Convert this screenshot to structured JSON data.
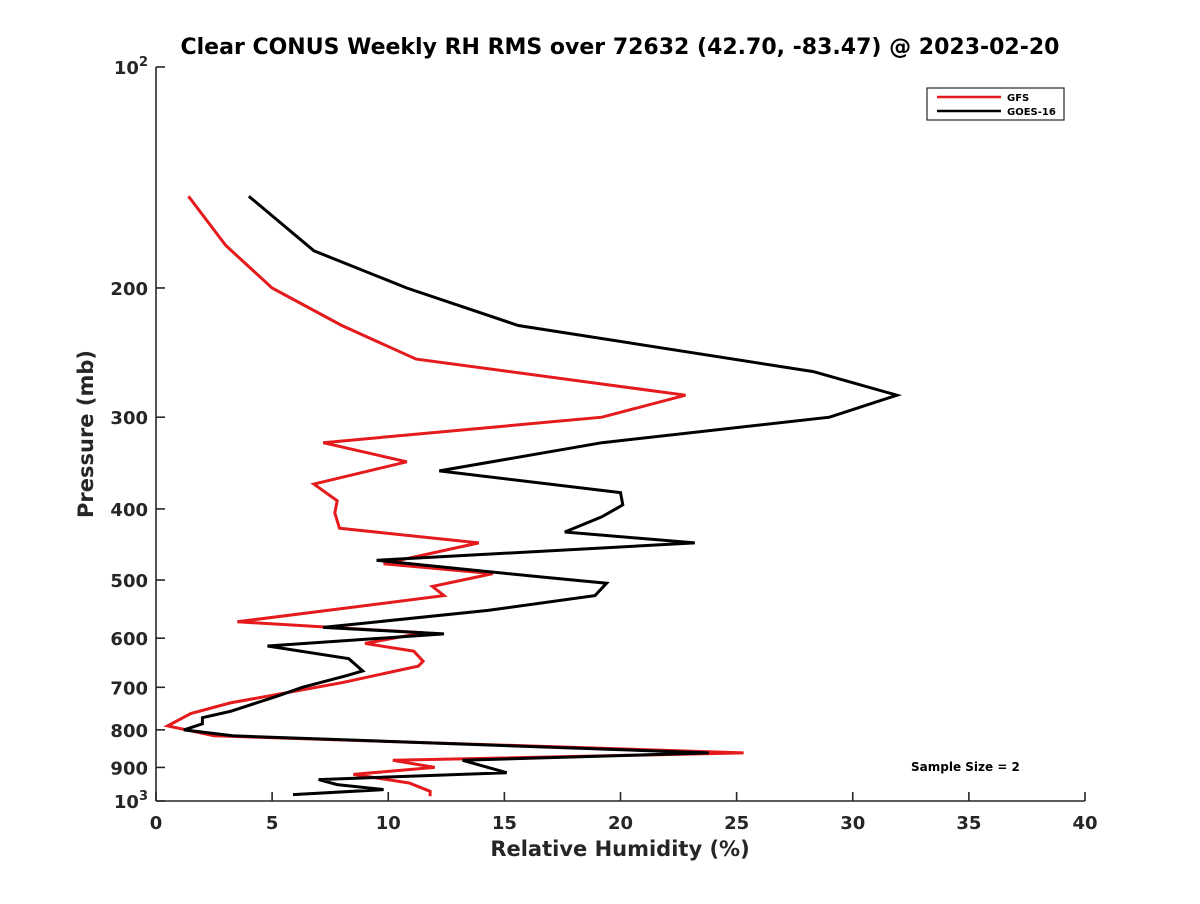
{
  "chart_data": {
    "type": "line",
    "title": "Clear CONUS Weekly RH RMS over 72632 (42.70, -83.47) @ 2023-02-20",
    "xlabel": "Relative Humidity (%)",
    "ylabel": "Pressure (mb)",
    "xlim": [
      0,
      40
    ],
    "ylim": [
      100,
      1000
    ],
    "y_scale": "log",
    "y_reversed": true,
    "grid": false,
    "legend_position": "top-right",
    "annotation": "Sample Size = 2",
    "x_ticks": [
      "0",
      "5",
      "10",
      "15",
      "20",
      "25",
      "30",
      "35",
      "40"
    ],
    "y_ticks": [
      {
        "value": 100,
        "base": "10",
        "exp": "2"
      },
      {
        "value": 200,
        "label": "200"
      },
      {
        "value": 300,
        "label": "300"
      },
      {
        "value": 400,
        "label": "400"
      },
      {
        "value": 500,
        "label": "500"
      },
      {
        "value": 600,
        "label": "600"
      },
      {
        "value": 700,
        "label": "700"
      },
      {
        "value": 800,
        "label": "800"
      },
      {
        "value": 900,
        "label": "900"
      },
      {
        "value": 1000,
        "base": "10",
        "exp": "3"
      }
    ],
    "series": [
      {
        "name": "GFS",
        "color": "#e41a1c",
        "points": [
          [
            1.4,
            150
          ],
          [
            3.0,
            175
          ],
          [
            5.0,
            200
          ],
          [
            8.0,
            225
          ],
          [
            11.2,
            250
          ],
          [
            22.8,
            280
          ],
          [
            19.2,
            300
          ],
          [
            7.2,
            325
          ],
          [
            10.8,
            345
          ],
          [
            6.8,
            370
          ],
          [
            7.8,
            390
          ],
          [
            7.7,
            405
          ],
          [
            7.9,
            425
          ],
          [
            13.9,
            445
          ],
          [
            9.8,
            475
          ],
          [
            14.5,
            490
          ],
          [
            11.9,
            510
          ],
          [
            12.4,
            525
          ],
          [
            3.5,
            570
          ],
          [
            11.5,
            590
          ],
          [
            9.0,
            610
          ],
          [
            11.1,
            625
          ],
          [
            11.5,
            645
          ],
          [
            11.3,
            655
          ],
          [
            8.0,
            690
          ],
          [
            3.2,
            735
          ],
          [
            1.5,
            760
          ],
          [
            0.5,
            790
          ],
          [
            2.5,
            815
          ],
          [
            25.3,
            860
          ],
          [
            10.2,
            880
          ],
          [
            12.0,
            900
          ],
          [
            8.5,
            920
          ],
          [
            10.9,
            945
          ],
          [
            11.8,
            970
          ],
          [
            11.8,
            985
          ]
        ]
      },
      {
        "name": "GOES-16",
        "color": "#000000",
        "points": [
          [
            4.0,
            150
          ],
          [
            6.8,
            178
          ],
          [
            10.8,
            200
          ],
          [
            15.6,
            225
          ],
          [
            28.3,
            260
          ],
          [
            31.9,
            280
          ],
          [
            29.0,
            300
          ],
          [
            19.2,
            325
          ],
          [
            12.2,
            355
          ],
          [
            20.0,
            380
          ],
          [
            20.1,
            395
          ],
          [
            19.2,
            410
          ],
          [
            17.6,
            430
          ],
          [
            23.2,
            445
          ],
          [
            9.5,
            470
          ],
          [
            16.5,
            495
          ],
          [
            19.4,
            505
          ],
          [
            18.9,
            525
          ],
          [
            14.3,
            550
          ],
          [
            7.2,
            580
          ],
          [
            12.4,
            592
          ],
          [
            4.8,
            615
          ],
          [
            8.3,
            640
          ],
          [
            8.9,
            665
          ],
          [
            8.2,
            675
          ],
          [
            6.3,
            700
          ],
          [
            5.2,
            720
          ],
          [
            3.2,
            755
          ],
          [
            2.0,
            770
          ],
          [
            2.0,
            785
          ],
          [
            1.2,
            800
          ],
          [
            3.3,
            815
          ],
          [
            23.8,
            860
          ],
          [
            13.2,
            880
          ],
          [
            15.1,
            915
          ],
          [
            7.0,
            935
          ],
          [
            7.8,
            950
          ],
          [
            9.8,
            965
          ],
          [
            5.9,
            980
          ]
        ]
      }
    ]
  }
}
